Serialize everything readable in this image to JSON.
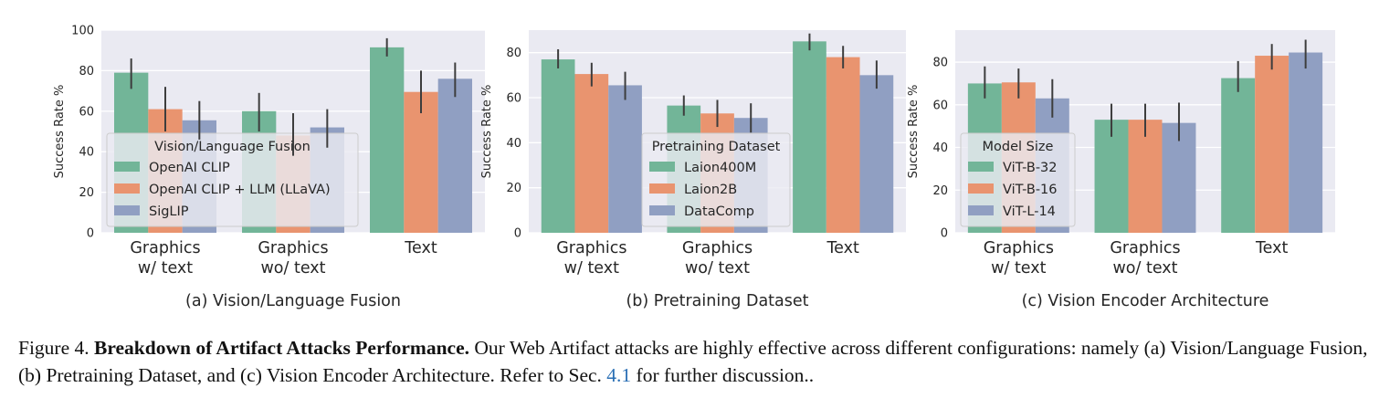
{
  "chart_data": [
    {
      "type": "bar",
      "subtitle": "(a) Vision/Language Fusion",
      "ylabel": "Success Rate %",
      "ylim": [
        0,
        100
      ],
      "yticks": [
        0,
        20,
        40,
        60,
        80,
        100
      ],
      "grid": true,
      "legend_title": "Vision/Language Fusion",
      "legend_position": "lower-left",
      "categories": [
        "Graphics\nw/ text",
        "Graphics\nwo/ text",
        "Text"
      ],
      "series": [
        {
          "name": "OpenAI CLIP",
          "color": "#72b598",
          "values": [
            79,
            60,
            91.5
          ],
          "err_low": [
            71,
            50,
            87
          ],
          "err_high": [
            86,
            69,
            96
          ]
        },
        {
          "name": "OpenAI CLIP + LLM (LLaVA)",
          "color": "#e9946f",
          "values": [
            61,
            48,
            69.5
          ],
          "err_low": [
            50,
            38,
            59
          ],
          "err_high": [
            72,
            59,
            80
          ]
        },
        {
          "name": "SigLIP",
          "color": "#909fc2",
          "values": [
            55.5,
            52,
            76
          ],
          "err_low": [
            46,
            42,
            67
          ],
          "err_high": [
            65,
            61,
            84
          ]
        }
      ]
    },
    {
      "type": "bar",
      "subtitle": "(b) Pretraining Dataset",
      "ylabel": "Success Rate %",
      "ylim": [
        0,
        90
      ],
      "yticks": [
        0,
        20,
        40,
        60,
        80
      ],
      "grid": true,
      "legend_title": "Pretraining Dataset",
      "legend_position": "lower-center",
      "categories": [
        "Graphics\nw/ text",
        "Graphics\nwo/ text",
        "Text"
      ],
      "series": [
        {
          "name": "Laion400M",
          "color": "#72b598",
          "values": [
            77,
            56.5,
            85
          ],
          "err_low": [
            73,
            52,
            81
          ],
          "err_high": [
            81.5,
            61,
            88.5
          ]
        },
        {
          "name": "Laion2B",
          "color": "#e9946f",
          "values": [
            70.5,
            53,
            78
          ],
          "err_low": [
            65,
            47,
            73
          ],
          "err_high": [
            75.5,
            59,
            83
          ]
        },
        {
          "name": "DataComp",
          "color": "#909fc2",
          "values": [
            65.5,
            51,
            70
          ],
          "err_low": [
            59,
            44.5,
            64
          ],
          "err_high": [
            71.5,
            57.5,
            76.5
          ]
        }
      ]
    },
    {
      "type": "bar",
      "subtitle": "(c) Vision Encoder Architecture",
      "ylabel": "Success Rate %",
      "ylim": [
        0,
        95
      ],
      "yticks": [
        0,
        20,
        40,
        60,
        80
      ],
      "grid": true,
      "legend_title": "Model Size",
      "legend_position": "lower-left",
      "categories": [
        "Graphics\nw/ text",
        "Graphics\nwo/ text",
        "Text"
      ],
      "series": [
        {
          "name": "ViT-B-32",
          "color": "#72b598",
          "values": [
            70,
            53,
            72.5
          ],
          "err_low": [
            63,
            45,
            66
          ],
          "err_high": [
            78,
            60.5,
            80.5
          ]
        },
        {
          "name": "ViT-B-16",
          "color": "#e9946f",
          "values": [
            70.5,
            53,
            83
          ],
          "err_low": [
            63,
            45,
            76.5
          ],
          "err_high": [
            77,
            60.5,
            88.5
          ]
        },
        {
          "name": "ViT-L-14",
          "color": "#909fc2",
          "values": [
            63,
            51.5,
            84.5
          ],
          "err_low": [
            54,
            43,
            77
          ],
          "err_high": [
            72,
            61,
            90.5
          ]
        }
      ]
    }
  ],
  "caption": {
    "label": "Figure 4.",
    "bold": "Breakdown of Artifact Attacks Performance.",
    "text1": "Our Web Artifact attacks are highly effective across different configurations: namely (a) Vision/Language Fusion, (b) Pretraining Dataset, and (c) Vision Encoder Architecture. Refer to Sec.",
    "ref": "4.1",
    "text2": "for further discussion.."
  }
}
